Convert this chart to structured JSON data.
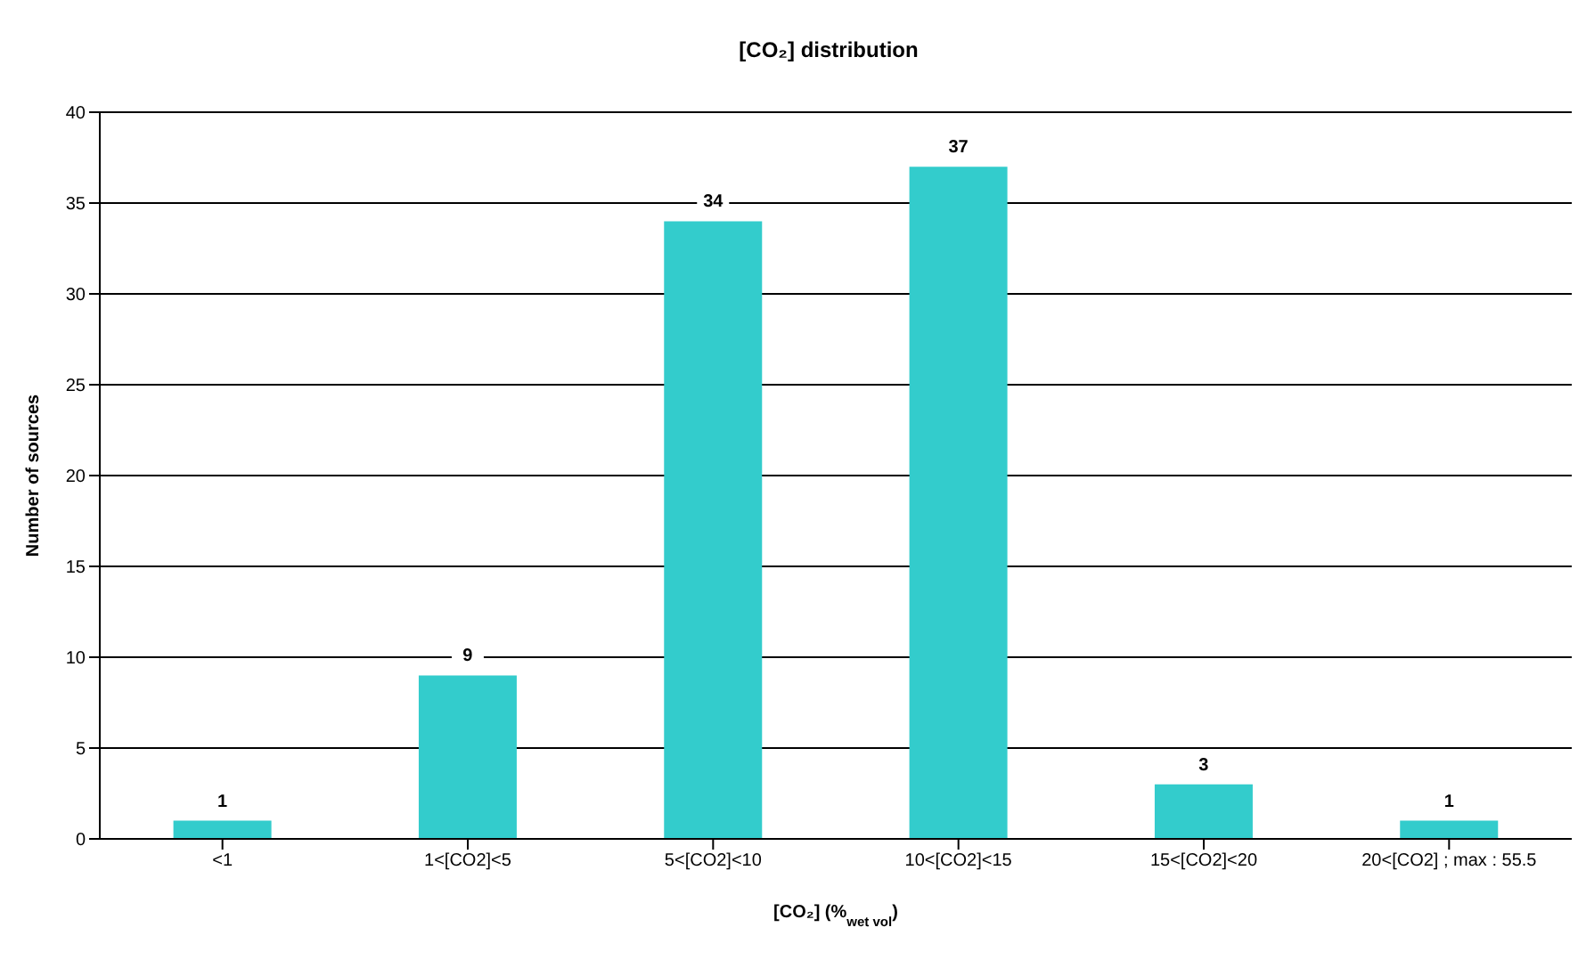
{
  "chart_data": {
    "type": "bar",
    "title": "[CO₂] distribution",
    "xlabel": "[CO₂] (%$_{wet vol}$)",
    "ylabel": "Number of sources",
    "categories": [
      "<1",
      "1<[CO2]<5",
      "5<[CO2]<10",
      "10<[CO2]<15",
      "15<[CO2]<20",
      "20<[CO2] ; max : 55.5"
    ],
    "values": [
      1,
      9,
      34,
      37,
      3,
      1
    ],
    "color": "#33cccc",
    "ylim": [
      0,
      40
    ],
    "yticks": [
      0,
      5,
      10,
      15,
      20,
      25,
      30,
      35,
      40
    ],
    "grid": "y",
    "data_labels": true
  }
}
